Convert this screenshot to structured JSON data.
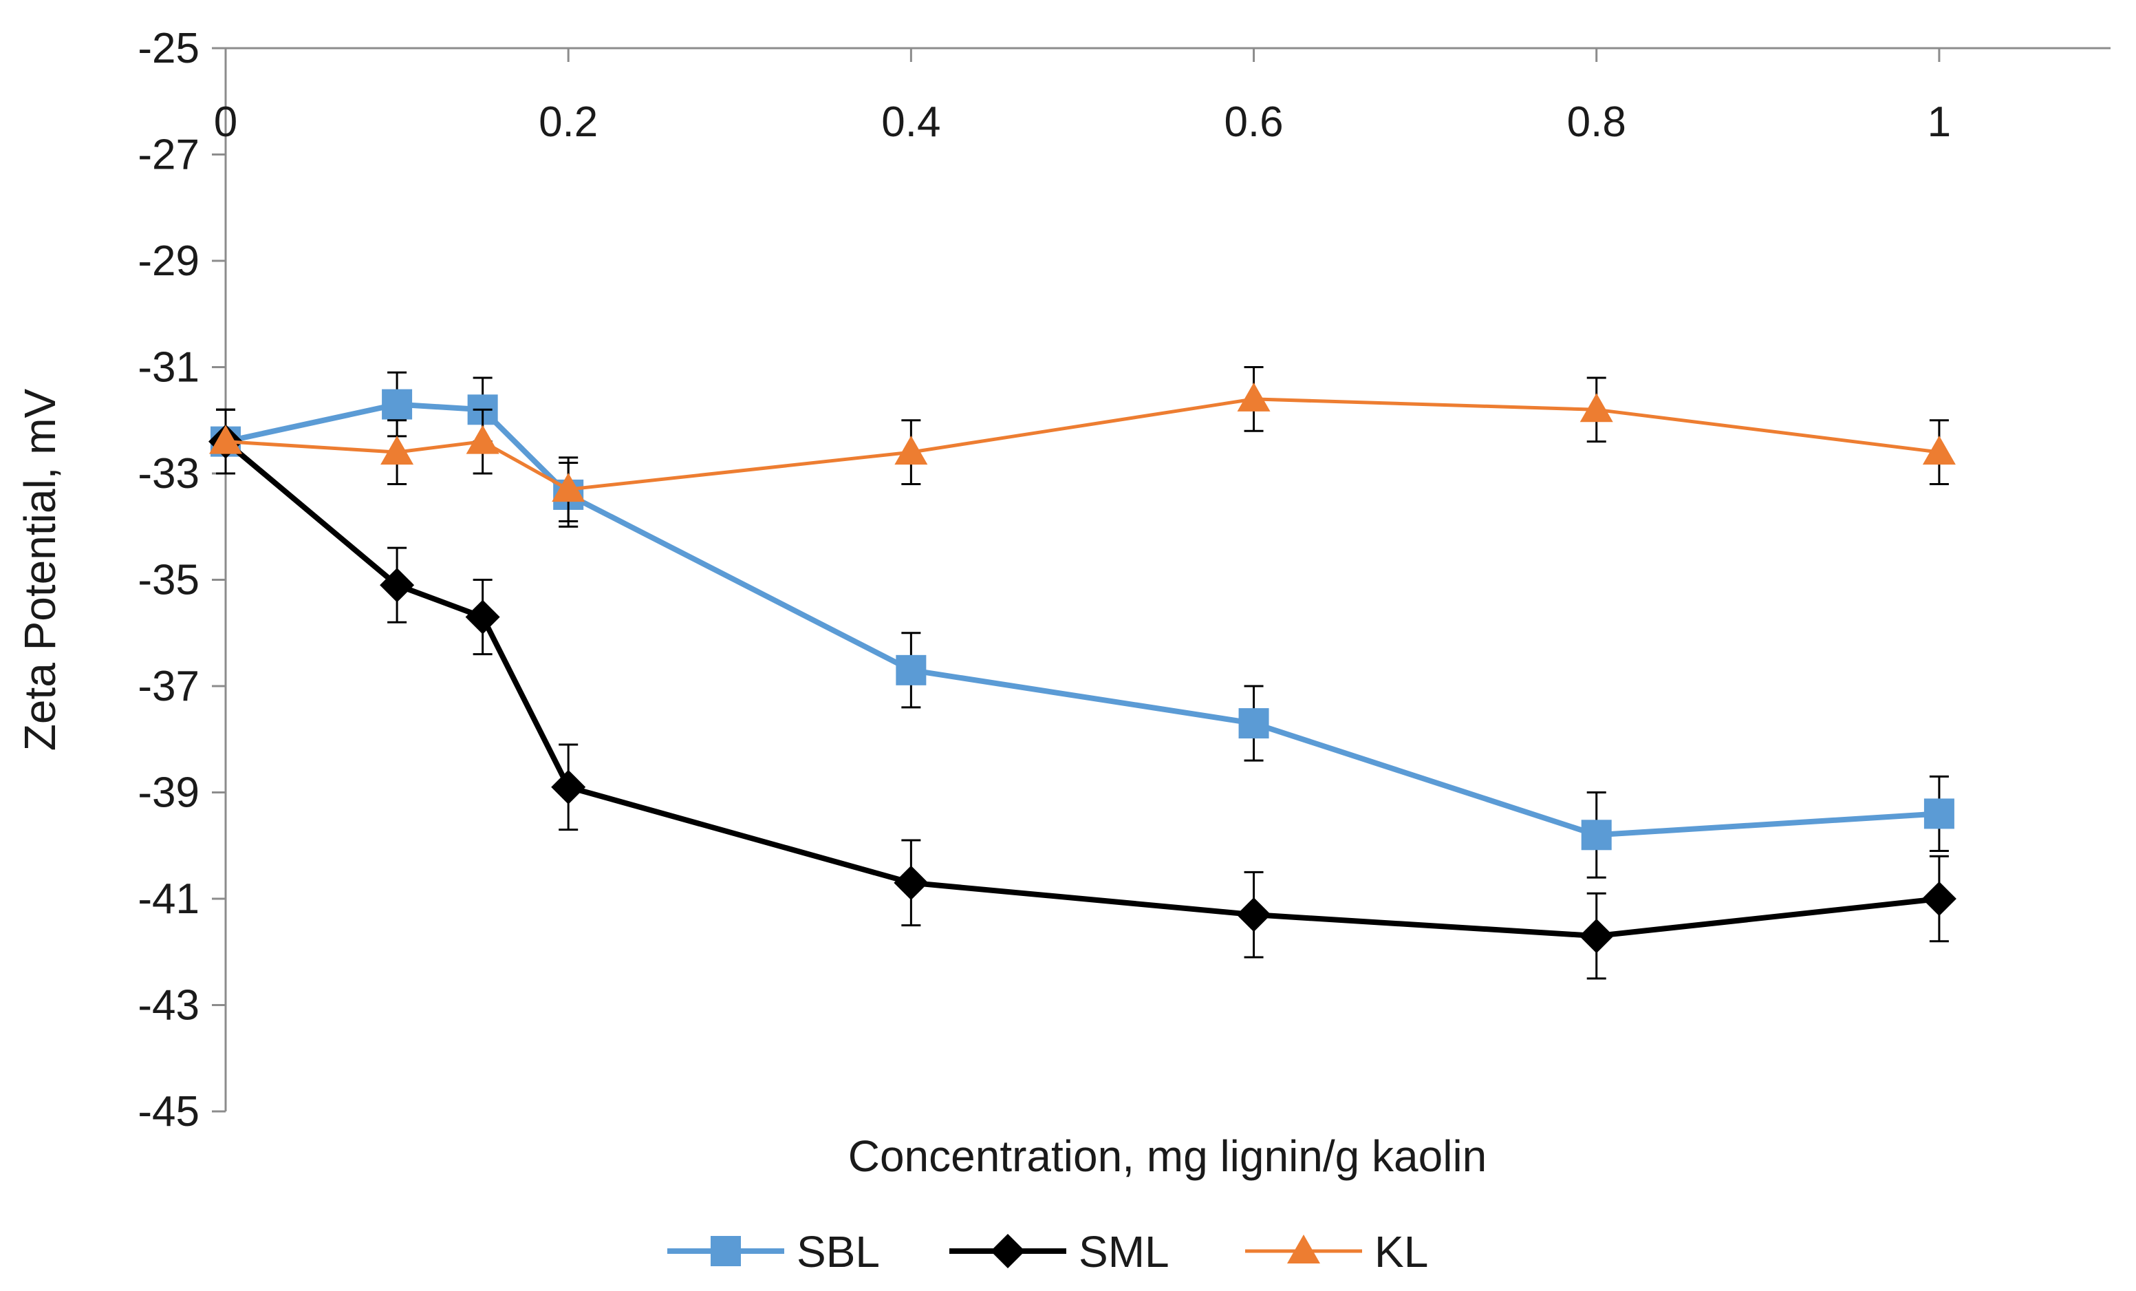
{
  "chart_data": {
    "type": "line",
    "title": "",
    "xlabel": "Concentration, mg lignin/g kaolin",
    "ylabel": "Zeta Potential, mV",
    "xlim": [
      0,
      1.1
    ],
    "ylim": [
      -45,
      -25
    ],
    "x_ticks": [
      "0",
      "0.2",
      "0.4",
      "0.6",
      "0.8",
      "1"
    ],
    "y_ticks": [
      "-25",
      "-27",
      "-29",
      "-31",
      "-33",
      "-35",
      "-37",
      "-39",
      "-41",
      "-43",
      "-45"
    ],
    "x_axis_position": "top",
    "grid": false,
    "legend_position": "bottom",
    "error_bars": true,
    "series": [
      {
        "name": "SBL",
        "color": "#5b9bd5",
        "marker": "square",
        "x": [
          0,
          0.1,
          0.15,
          0.2,
          0.4,
          0.6,
          0.8,
          1
        ],
        "y": [
          -32.4,
          -31.7,
          -31.8,
          -33.4,
          -36.7,
          -37.7,
          -39.8,
          -39.4
        ],
        "err": [
          0.6,
          0.6,
          0.6,
          0.6,
          0.7,
          0.7,
          0.8,
          0.7
        ]
      },
      {
        "name": "SML",
        "color": "#000000",
        "marker": "diamond",
        "x": [
          0,
          0.1,
          0.15,
          0.2,
          0.4,
          0.6,
          0.8,
          1
        ],
        "y": [
          -32.4,
          -35.1,
          -35.7,
          -38.9,
          -40.7,
          -41.3,
          -41.7,
          -41.0
        ],
        "err": [
          0.6,
          0.7,
          0.7,
          0.8,
          0.8,
          0.8,
          0.8,
          0.8
        ]
      },
      {
        "name": "KL",
        "color": "#ed7d31",
        "marker": "triangle",
        "x": [
          0,
          0.1,
          0.15,
          0.2,
          0.4,
          0.6,
          0.8,
          1
        ],
        "y": [
          -32.4,
          -32.6,
          -32.4,
          -33.3,
          -32.6,
          -31.6,
          -31.8,
          -32.6
        ],
        "err": [
          0.6,
          0.6,
          0.6,
          0.6,
          0.6,
          0.6,
          0.6,
          0.6
        ]
      }
    ]
  }
}
